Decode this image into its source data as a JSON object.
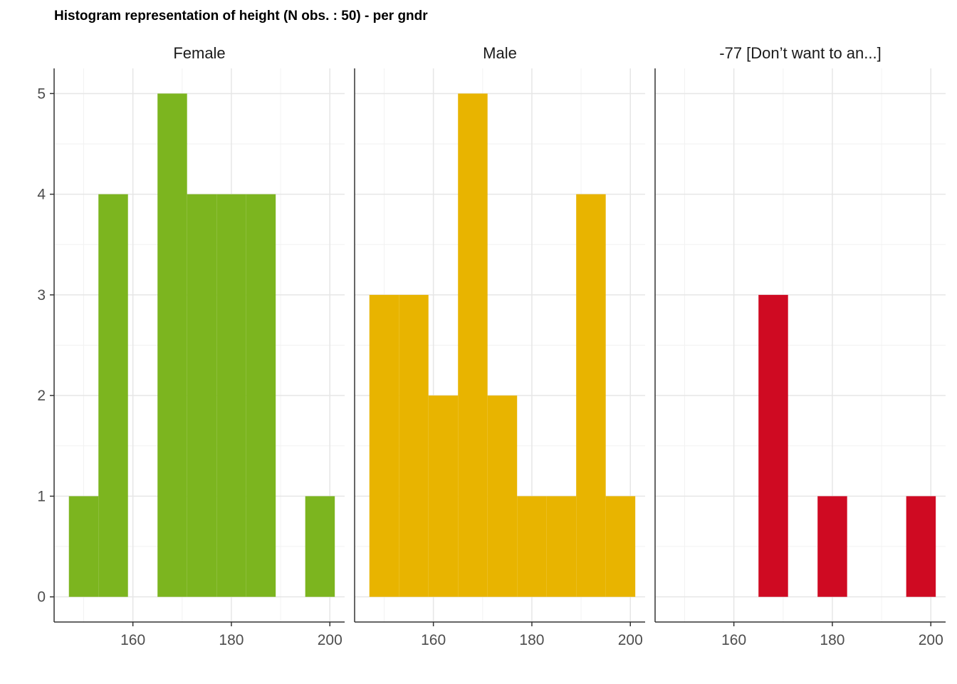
{
  "title": "Histogram representation of height (N obs. : 50) - per gndr",
  "chart_data": {
    "type": "bar",
    "subtype": "faceted histogram",
    "title": "Histogram representation of height (N obs. : 50) - per gndr",
    "xlabel": "",
    "ylabel": "",
    "xlim": [
      144,
      203
    ],
    "ylim": [
      -0.25,
      5.25
    ],
    "x_ticks": [
      160,
      180,
      200
    ],
    "y_ticks": [
      0,
      1,
      2,
      3,
      4,
      5
    ],
    "bin_width": 6,
    "grid": true,
    "legend": "none",
    "panels": [
      {
        "label": "Female",
        "color": "#7CB51F",
        "bins": [
          {
            "x0": 147,
            "x1": 153,
            "count": 1
          },
          {
            "x0": 153,
            "x1": 159,
            "count": 4
          },
          {
            "x0": 159,
            "x1": 165,
            "count": 0
          },
          {
            "x0": 165,
            "x1": 171,
            "count": 5
          },
          {
            "x0": 171,
            "x1": 177,
            "count": 4
          },
          {
            "x0": 177,
            "x1": 183,
            "count": 4
          },
          {
            "x0": 183,
            "x1": 189,
            "count": 4
          },
          {
            "x0": 189,
            "x1": 195,
            "count": 0
          },
          {
            "x0": 195,
            "x1": 201,
            "count": 1
          }
        ]
      },
      {
        "label": "Male",
        "color": "#E8B400",
        "bins": [
          {
            "x0": 147,
            "x1": 153,
            "count": 3
          },
          {
            "x0": 153,
            "x1": 159,
            "count": 3
          },
          {
            "x0": 159,
            "x1": 165,
            "count": 2
          },
          {
            "x0": 165,
            "x1": 171,
            "count": 5
          },
          {
            "x0": 171,
            "x1": 177,
            "count": 2
          },
          {
            "x0": 177,
            "x1": 183,
            "count": 1
          },
          {
            "x0": 183,
            "x1": 189,
            "count": 1
          },
          {
            "x0": 189,
            "x1": 195,
            "count": 4
          },
          {
            "x0": 195,
            "x1": 201,
            "count": 1
          }
        ]
      },
      {
        "label": "-77 [Don’t want to an...]",
        "color": "#CF0A22",
        "bins": [
          {
            "x0": 165,
            "x1": 171,
            "count": 3
          },
          {
            "x0": 171,
            "x1": 177,
            "count": 0
          },
          {
            "x0": 177,
            "x1": 183,
            "count": 1
          },
          {
            "x0": 183,
            "x1": 189,
            "count": 0
          },
          {
            "x0": 189,
            "x1": 195,
            "count": 0
          },
          {
            "x0": 195,
            "x1": 201,
            "count": 1
          }
        ]
      }
    ]
  }
}
